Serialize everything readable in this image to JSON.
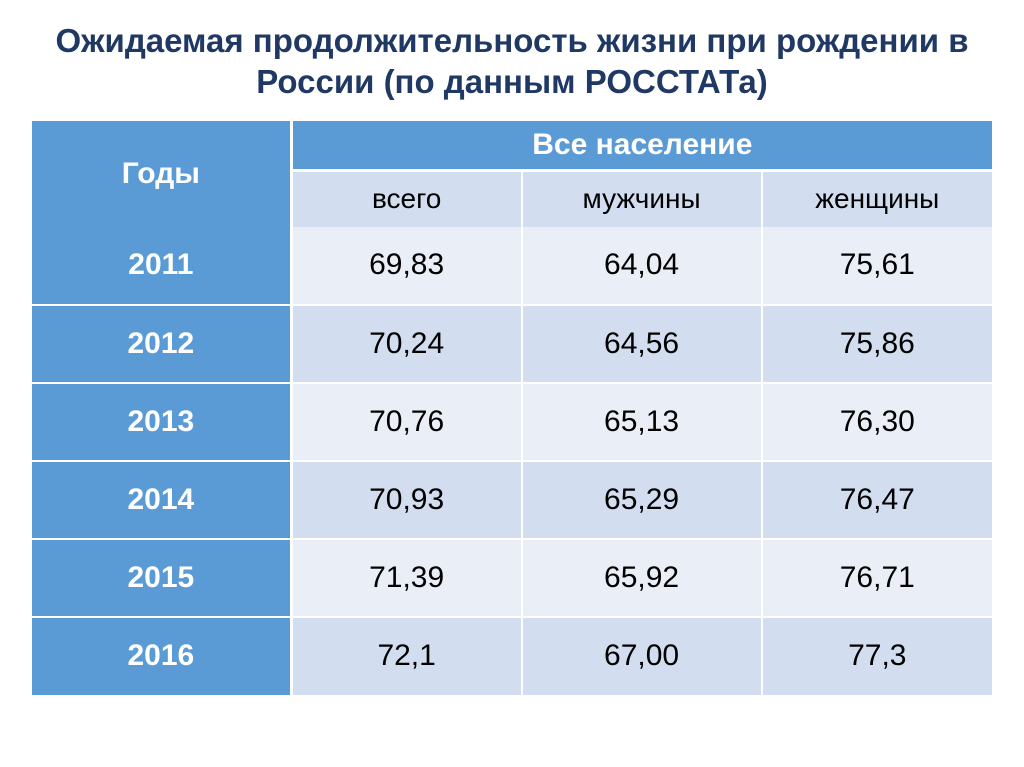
{
  "title": "Ожидаемая продолжительность жизни при рождении в России (по данным РОССТАТа)",
  "title_color": "#1f3864",
  "title_fontsize": 33,
  "table": {
    "type": "table",
    "header_bg": "#5b9bd5",
    "header_fg": "#ffffff",
    "subheader_bg": "#d2deef",
    "subheader_fg": "#000000",
    "row_odd_bg": "#eaeff7",
    "row_even_bg": "#d2deef",
    "year_cell_bg": "#5b9bd5",
    "year_cell_fg": "#ffffff",
    "cell_fg": "#000000",
    "header_fontsize": 30,
    "subheader_fontsize": 28,
    "body_fontsize": 30,
    "header_row1_height": 50,
    "header_row2_height": 56,
    "body_row_height": 78,
    "col_widths": [
      "27%",
      "24%",
      "25%",
      "24%"
    ],
    "columns": {
      "years": "Годы",
      "population": "Все население",
      "total": "всего",
      "men": "мужчины",
      "women": "женщины"
    },
    "rows": [
      {
        "year": "2011",
        "total": "69,83",
        "men": "64,04",
        "women": "75,61"
      },
      {
        "year": "2012",
        "total": "70,24",
        "men": "64,56",
        "women": "75,86"
      },
      {
        "year": "2013",
        "total": "70,76",
        "men": "65,13",
        "women": "76,30"
      },
      {
        "year": "2014",
        "total": "70,93",
        "men": "65,29",
        "women": "76,47"
      },
      {
        "year": "2015",
        "total": "71,39",
        "men": "65,92",
        "women": "76,71"
      },
      {
        "year": "2016",
        "total": "72,1",
        "men": "67,00",
        "women": "77,3"
      }
    ]
  }
}
